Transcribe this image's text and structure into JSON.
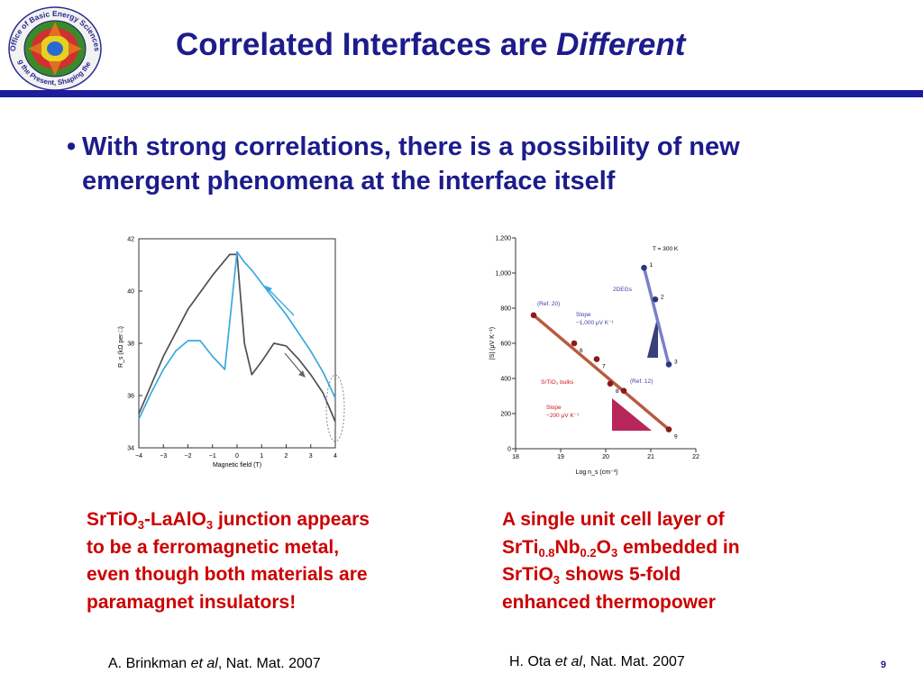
{
  "slide": {
    "title_main": "Correlated Interfaces are ",
    "title_italic": "Different",
    "bullet": "With strong correlations, there is a possibility of new emergent phenomena at the interface itself",
    "page_number": "9"
  },
  "logo": {
    "ring_top": "Office of Basic Energy Sciences",
    "ring_bottom": "Serving the Present, Shaping the Future"
  },
  "captions": {
    "left": {
      "p1": "SrTiO",
      "s1": "3",
      "p2": "-LaAlO",
      "s2": "3",
      "p3": " junction appears to be a ferromagnetic metal, even though both materials are paramagnet insulators!"
    },
    "right": {
      "p1": "A single unit cell layer of SrTi",
      "s1": "0.8",
      "p2": "Nb",
      "s2": "0.2",
      "p3": "O",
      "s3": "3",
      "p4": " embedded in SrTiO",
      "s4": "3",
      "p5": " shows 5-fold enhanced thermopower"
    }
  },
  "references": {
    "left": {
      "authors": "A. Brinkman ",
      "etal": "et al",
      "journal": ", Nat. Mat. 2007"
    },
    "right": {
      "authors": "H. Ota ",
      "etal": "et al",
      "journal": ", Nat. Mat. 2007"
    }
  },
  "chart_data": [
    {
      "type": "line",
      "title": "",
      "xlabel": "Magnetic field (T)",
      "ylabel": "R_s (kΩ per □)",
      "xlim": [
        -4,
        4
      ],
      "ylim": [
        34,
        42
      ],
      "xticks": [
        "−4",
        "−3",
        "−2",
        "−1",
        "0",
        "1",
        "2",
        "3",
        "4"
      ],
      "yticks": [
        "34",
        "36",
        "38",
        "40",
        "42"
      ],
      "grid": false,
      "series": [
        {
          "color": "#505050",
          "x": [
            -4,
            -3.5,
            -3,
            -2,
            -1,
            -0.3,
            0,
            0.3,
            0.6,
            1,
            1.5,
            2,
            2.5,
            3,
            3.5,
            4
          ],
          "y": [
            35.3,
            36.4,
            37.5,
            39.3,
            40.6,
            41.4,
            41.4,
            38,
            36.8,
            37.3,
            38,
            37.9,
            37.4,
            36.8,
            36.1,
            35.0
          ]
        },
        {
          "color": "#3aa8e0",
          "x": [
            -4,
            -3.5,
            -3,
            -2.5,
            -2,
            -1.5,
            -1,
            -0.5,
            0,
            0.3,
            0.6,
            1,
            1.5,
            2,
            2.5,
            3,
            3.5,
            4
          ],
          "y": [
            35.1,
            36.1,
            37,
            37.7,
            38.1,
            38.1,
            37.5,
            37,
            41.5,
            41.1,
            40.8,
            40.3,
            39.7,
            39.1,
            38.4,
            37.7,
            36.9,
            35.9
          ]
        }
      ]
    },
    {
      "type": "scatter",
      "title": "",
      "xlabel": "Log n_s (cm⁻³)",
      "ylabel": "|S| (μV K⁻¹)",
      "xlim": [
        18,
        22
      ],
      "ylim": [
        0,
        1200
      ],
      "xticks": [
        "18",
        "19",
        "20",
        "21",
        "22"
      ],
      "yticks": [
        "0",
        "200",
        "400",
        "600",
        "800",
        "1,000",
        "1,200"
      ],
      "grid": false,
      "annotations": [
        "T = 300 K",
        "2DEGs",
        "Slope",
        "−1,000 μV K⁻¹",
        "SrTiO₃ bulks",
        "Slope",
        "−200 μV K⁻¹",
        "(Ref. 20)",
        "(Ref. 12)"
      ],
      "series": [
        {
          "name": "SrTiO₃ bulks",
          "color": "#8b1a1a",
          "x": [
            18.4,
            19.3,
            19.8,
            20.1,
            20.4,
            21.4
          ],
          "y": [
            760,
            600,
            510,
            370,
            330,
            110
          ],
          "labels": [
            "",
            "6",
            "7",
            "8",
            "",
            "9"
          ]
        },
        {
          "name": "2DEGs",
          "color": "#2c3580",
          "x": [
            20.85,
            21.1,
            21.4
          ],
          "y": [
            1030,
            850,
            480
          ],
          "labels": [
            "1",
            "2",
            "3"
          ]
        }
      ]
    }
  ]
}
